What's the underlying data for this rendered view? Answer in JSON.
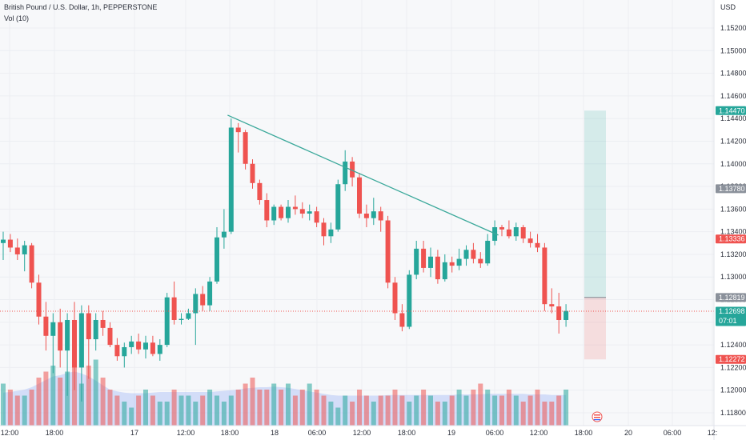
{
  "header": {
    "symbol_line": "British Pound / U.S. Dollar, 1h, PEPPERSTONE",
    "volume_line": "Vol (10)"
  },
  "axis": {
    "currency": "USD",
    "y_ticks": [
      "1.15200",
      "1.15000",
      "1.14800",
      "1.14600",
      "1.14400",
      "1.14200",
      "1.14000",
      "1.13800",
      "1.13600",
      "1.13400",
      "1.13200",
      "1.13000",
      "1.12800",
      "1.12600",
      "1.12400",
      "1.12200",
      "1.12000",
      "1.11800"
    ],
    "x_ticks": [
      "12:00",
      "18:00",
      "17",
      "12:00",
      "18:00",
      "18",
      "06:00",
      "12:00",
      "18:00",
      "19",
      "06:00",
      "12:00",
      "18:00",
      "20",
      "06:00",
      "12:"
    ]
  },
  "price_tags": {
    "target_top": "1.14470",
    "upper_mid": "1.13780",
    "stop_red": "1.13336",
    "entry": "1.12819",
    "current": "1.12698",
    "countdown": "07:01",
    "stop_bottom": "1.12272"
  },
  "colors": {
    "up": "#26a69a",
    "down": "#ef5350",
    "trendline": "#3aa89a",
    "tag_gray": "#8b919b",
    "tag_green": "#26a69a",
    "tag_red": "#ef5350",
    "vol_ma": "#b7c7f5"
  },
  "chart_data": {
    "type": "candlestick",
    "timeframe": "1h",
    "ylim": [
      1.1175,
      1.1535
    ],
    "candles": [
      {
        "o": 1.133,
        "h": 1.134,
        "l": 1.1315,
        "c": 1.1333
      },
      {
        "o": 1.1333,
        "h": 1.1338,
        "l": 1.1322,
        "c": 1.1326
      },
      {
        "o": 1.1326,
        "h": 1.1334,
        "l": 1.1315,
        "c": 1.132
      },
      {
        "o": 1.132,
        "h": 1.1332,
        "l": 1.1305,
        "c": 1.1328
      },
      {
        "o": 1.1328,
        "h": 1.133,
        "l": 1.129,
        "c": 1.1295
      },
      {
        "o": 1.1295,
        "h": 1.1302,
        "l": 1.1258,
        "c": 1.1265
      },
      {
        "o": 1.1265,
        "h": 1.1278,
        "l": 1.1235,
        "c": 1.1248
      },
      {
        "o": 1.1248,
        "h": 1.1268,
        "l": 1.1215,
        "c": 1.126
      },
      {
        "o": 1.126,
        "h": 1.1272,
        "l": 1.122,
        "c": 1.1235
      },
      {
        "o": 1.1235,
        "h": 1.1268,
        "l": 1.1195,
        "c": 1.1262
      },
      {
        "o": 1.1262,
        "h": 1.1278,
        "l": 1.12,
        "c": 1.122
      },
      {
        "o": 1.122,
        "h": 1.1275,
        "l": 1.119,
        "c": 1.1268
      },
      {
        "o": 1.1268,
        "h": 1.1275,
        "l": 1.121,
        "c": 1.1245
      },
      {
        "o": 1.1245,
        "h": 1.1268,
        "l": 1.1235,
        "c": 1.1262
      },
      {
        "o": 1.1262,
        "h": 1.127,
        "l": 1.1248,
        "c": 1.1255
      },
      {
        "o": 1.1255,
        "h": 1.126,
        "l": 1.1238,
        "c": 1.124
      },
      {
        "o": 1.124,
        "h": 1.1246,
        "l": 1.1226,
        "c": 1.123
      },
      {
        "o": 1.123,
        "h": 1.1242,
        "l": 1.122,
        "c": 1.1238
      },
      {
        "o": 1.1238,
        "h": 1.1248,
        "l": 1.1232,
        "c": 1.1243
      },
      {
        "o": 1.1243,
        "h": 1.125,
        "l": 1.1232,
        "c": 1.1236
      },
      {
        "o": 1.1236,
        "h": 1.1248,
        "l": 1.1228,
        "c": 1.1242
      },
      {
        "o": 1.1242,
        "h": 1.1248,
        "l": 1.123,
        "c": 1.1232
      },
      {
        "o": 1.1232,
        "h": 1.1245,
        "l": 1.1226,
        "c": 1.124
      },
      {
        "o": 1.124,
        "h": 1.1286,
        "l": 1.1238,
        "c": 1.1282
      },
      {
        "o": 1.1282,
        "h": 1.1296,
        "l": 1.1258,
        "c": 1.1262
      },
      {
        "o": 1.1262,
        "h": 1.1268,
        "l": 1.1258,
        "c": 1.1263
      },
      {
        "o": 1.1263,
        "h": 1.1272,
        "l": 1.1262,
        "c": 1.1268
      },
      {
        "o": 1.1268,
        "h": 1.129,
        "l": 1.124,
        "c": 1.1285
      },
      {
        "o": 1.1285,
        "h": 1.1292,
        "l": 1.127,
        "c": 1.1275
      },
      {
        "o": 1.1275,
        "h": 1.13,
        "l": 1.127,
        "c": 1.1296
      },
      {
        "o": 1.1296,
        "h": 1.1344,
        "l": 1.1294,
        "c": 1.1335
      },
      {
        "o": 1.1335,
        "h": 1.136,
        "l": 1.1325,
        "c": 1.134
      },
      {
        "o": 1.134,
        "h": 1.144,
        "l": 1.1338,
        "c": 1.1432
      },
      {
        "o": 1.1432,
        "h": 1.1436,
        "l": 1.141,
        "c": 1.1428
      },
      {
        "o": 1.1428,
        "h": 1.143,
        "l": 1.1395,
        "c": 1.14
      },
      {
        "o": 1.14,
        "h": 1.1404,
        "l": 1.1378,
        "c": 1.1383
      },
      {
        "o": 1.1383,
        "h": 1.1386,
        "l": 1.1364,
        "c": 1.1368
      },
      {
        "o": 1.1368,
        "h": 1.1374,
        "l": 1.1344,
        "c": 1.135
      },
      {
        "o": 1.135,
        "h": 1.1364,
        "l": 1.1346,
        "c": 1.1362
      },
      {
        "o": 1.1362,
        "h": 1.1364,
        "l": 1.135,
        "c": 1.1352
      },
      {
        "o": 1.1352,
        "h": 1.1368,
        "l": 1.1348,
        "c": 1.1362
      },
      {
        "o": 1.1362,
        "h": 1.1372,
        "l": 1.1355,
        "c": 1.136
      },
      {
        "o": 1.136,
        "h": 1.1366,
        "l": 1.1352,
        "c": 1.1356
      },
      {
        "o": 1.1356,
        "h": 1.1364,
        "l": 1.135,
        "c": 1.1358
      },
      {
        "o": 1.1358,
        "h": 1.1362,
        "l": 1.1344,
        "c": 1.1348
      },
      {
        "o": 1.1348,
        "h": 1.1352,
        "l": 1.1328,
        "c": 1.1336
      },
      {
        "o": 1.1336,
        "h": 1.1348,
        "l": 1.133,
        "c": 1.1342
      },
      {
        "o": 1.1342,
        "h": 1.1386,
        "l": 1.134,
        "c": 1.1382
      },
      {
        "o": 1.1382,
        "h": 1.1412,
        "l": 1.1376,
        "c": 1.1402
      },
      {
        "o": 1.1402,
        "h": 1.1406,
        "l": 1.138,
        "c": 1.1388
      },
      {
        "o": 1.1388,
        "h": 1.1392,
        "l": 1.1352,
        "c": 1.1356
      },
      {
        "o": 1.1356,
        "h": 1.1364,
        "l": 1.1344,
        "c": 1.1352
      },
      {
        "o": 1.1352,
        "h": 1.137,
        "l": 1.1346,
        "c": 1.1358
      },
      {
        "o": 1.1358,
        "h": 1.1362,
        "l": 1.134,
        "c": 1.135
      },
      {
        "o": 1.135,
        "h": 1.1354,
        "l": 1.129,
        "c": 1.1295
      },
      {
        "o": 1.1295,
        "h": 1.13,
        "l": 1.1262,
        "c": 1.1268
      },
      {
        "o": 1.1268,
        "h": 1.1276,
        "l": 1.1252,
        "c": 1.1256
      },
      {
        "o": 1.1256,
        "h": 1.1306,
        "l": 1.1254,
        "c": 1.1302
      },
      {
        "o": 1.1302,
        "h": 1.1332,
        "l": 1.1298,
        "c": 1.1325
      },
      {
        "o": 1.1325,
        "h": 1.1332,
        "l": 1.1304,
        "c": 1.1308
      },
      {
        "o": 1.1308,
        "h": 1.1326,
        "l": 1.13,
        "c": 1.1318
      },
      {
        "o": 1.1318,
        "h": 1.1324,
        "l": 1.1294,
        "c": 1.1298
      },
      {
        "o": 1.1298,
        "h": 1.132,
        "l": 1.1296,
        "c": 1.1313
      },
      {
        "o": 1.1313,
        "h": 1.1318,
        "l": 1.1304,
        "c": 1.131
      },
      {
        "o": 1.131,
        "h": 1.1325,
        "l": 1.1306,
        "c": 1.1316
      },
      {
        "o": 1.1316,
        "h": 1.1328,
        "l": 1.131,
        "c": 1.1324
      },
      {
        "o": 1.1324,
        "h": 1.133,
        "l": 1.1312,
        "c": 1.1316
      },
      {
        "o": 1.1316,
        "h": 1.1322,
        "l": 1.1308,
        "c": 1.1312
      },
      {
        "o": 1.1312,
        "h": 1.1338,
        "l": 1.131,
        "c": 1.1332
      },
      {
        "o": 1.1332,
        "h": 1.135,
        "l": 1.1328,
        "c": 1.1344
      },
      {
        "o": 1.1344,
        "h": 1.1346,
        "l": 1.1336,
        "c": 1.1342
      },
      {
        "o": 1.1342,
        "h": 1.135,
        "l": 1.1334,
        "c": 1.1336
      },
      {
        "o": 1.1336,
        "h": 1.1348,
        "l": 1.1332,
        "c": 1.1344
      },
      {
        "o": 1.1344,
        "h": 1.1346,
        "l": 1.133,
        "c": 1.1334
      },
      {
        "o": 1.1334,
        "h": 1.134,
        "l": 1.1326,
        "c": 1.133
      },
      {
        "o": 1.133,
        "h": 1.1338,
        "l": 1.1322,
        "c": 1.1326
      },
      {
        "o": 1.1326,
        "h": 1.133,
        "l": 1.127,
        "c": 1.1276
      },
      {
        "o": 1.1276,
        "h": 1.129,
        "l": 1.1268,
        "c": 1.1274
      },
      {
        "o": 1.1274,
        "h": 1.1286,
        "l": 1.125,
        "c": 1.1262
      },
      {
        "o": 1.1262,
        "h": 1.1276,
        "l": 1.1256,
        "c": 1.127
      }
    ],
    "volume": [
      7,
      6,
      5,
      5,
      6,
      8,
      9,
      10,
      8,
      9,
      12,
      7,
      10,
      11,
      8,
      6,
      5,
      4,
      3,
      5,
      6,
      5,
      4,
      4,
      6,
      5,
      5,
      4,
      5,
      6,
      5,
      4,
      5,
      6,
      7,
      8,
      6,
      6,
      7,
      6,
      7,
      5,
      6,
      7,
      6,
      5,
      4,
      3,
      5,
      4,
      6,
      5,
      4,
      5,
      5,
      6,
      5,
      4,
      5,
      6,
      5,
      4,
      4,
      5,
      6,
      5,
      6,
      7,
      6,
      5,
      5,
      6,
      5,
      4,
      5,
      6,
      4,
      4,
      5,
      6
    ],
    "volume_ma": [
      5.5,
      5.6,
      5.8,
      6.0,
      6.4,
      7.0,
      7.6,
      8.2,
      8.4,
      8.8,
      9.0,
      8.7,
      8.2,
      7.5,
      6.7,
      6.0,
      5.7,
      5.5,
      5.4,
      5.4,
      5.4,
      5.5,
      5.6,
      5.6,
      5.6,
      5.6,
      5.6,
      5.6,
      5.6,
      5.6,
      5.7,
      5.8,
      5.9,
      6.0,
      6.2,
      6.3,
      6.4,
      6.4,
      6.5,
      6.4,
      6.3,
      6.1,
      5.9,
      5.7,
      5.5,
      5.3,
      5.1,
      5.0,
      5.0,
      5.0,
      5.0,
      5.0,
      5.0,
      5.0,
      5.1,
      5.1,
      5.1,
      5.1,
      5.1,
      5.1,
      5.1,
      5.1,
      5.1,
      5.1,
      5.2,
      5.2,
      5.2,
      5.2,
      5.3,
      5.3,
      5.3,
      5.3,
      5.3,
      5.3,
      5.2,
      5.2,
      5.2,
      5.1,
      5.1,
      5.1
    ],
    "trendline": {
      "x1": 31.5,
      "y1": 1.1443,
      "x2": 69.5,
      "y2": 1.1337
    },
    "position": {
      "target": 1.1447,
      "entry": 1.12819,
      "stop": 1.12272
    },
    "last_price": 1.12698
  }
}
